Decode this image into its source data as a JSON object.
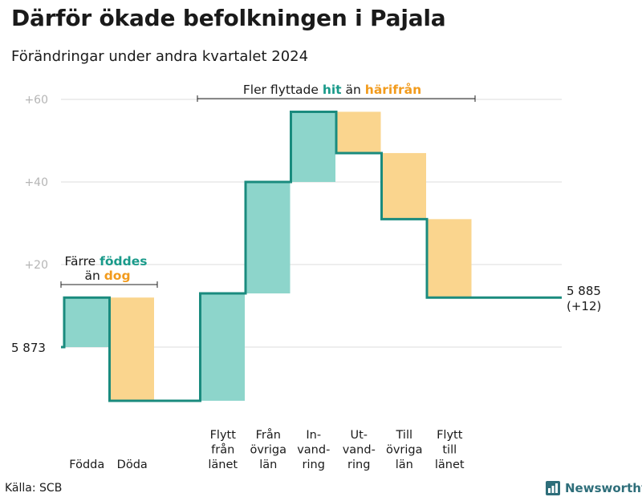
{
  "title": "Därför ökade befolkningen i Pajala",
  "subtitle": "Förändringar under andra kvartalet 2024",
  "source": "Källa: SCB",
  "brand": "Newsworthy",
  "colors": {
    "increase_fill": "#8dd5cb",
    "decrease_fill": "#fad58e",
    "line": "#1a8b7e",
    "teal_text": "#1a9a8a",
    "orange_text": "#f29b1d",
    "grid": "#dddddd",
    "tick_text": "#b5b5b5"
  },
  "annotations": {
    "left": {
      "line1_a": "Färre ",
      "line1_b": "föddes",
      "line2_a": "än ",
      "line2_b": "dog"
    },
    "top": {
      "part_a": "Fler flyttade ",
      "part_b": "hit",
      "part_c": " än ",
      "part_d": "härifrån"
    }
  },
  "chart_data": {
    "type": "waterfall",
    "start_label": "5  873",
    "start_value": 0,
    "end_label_line1": "5 885",
    "end_label_line2": "(+12)",
    "end_value": 12,
    "y_ticks": [
      {
        "value": 20,
        "label": "+20"
      },
      {
        "value": 40,
        "label": "+40"
      },
      {
        "value": 60,
        "label": "+60"
      }
    ],
    "ylim": [
      -13,
      63
    ],
    "categories": [
      {
        "lines": [
          "Födda"
        ],
        "delta": 12,
        "start": 0,
        "end": 12
      },
      {
        "lines": [
          "Döda"
        ],
        "delta": -25,
        "start": 12,
        "end": -13
      },
      {
        "lines": [
          ""
        ],
        "delta": 0,
        "start": -13,
        "end": -13
      },
      {
        "lines": [
          "Flytt",
          "från",
          "länet"
        ],
        "delta": 26,
        "start": -13,
        "end": 13
      },
      {
        "lines": [
          "Från",
          "övriga",
          "län"
        ],
        "delta": 27,
        "start": 13,
        "end": 40
      },
      {
        "lines": [
          "In-",
          "vand-",
          "ring"
        ],
        "delta": 17,
        "start": 40,
        "end": 57
      },
      {
        "lines": [
          "Ut-",
          "vand-",
          "ring"
        ],
        "delta": -10,
        "start": 57,
        "end": 47
      },
      {
        "lines": [
          "Till",
          "övriga",
          "län"
        ],
        "delta": -16,
        "start": 47,
        "end": 31
      },
      {
        "lines": [
          "Flytt",
          "till",
          "länet"
        ],
        "delta": -19,
        "start": 31,
        "end": 12
      }
    ]
  }
}
